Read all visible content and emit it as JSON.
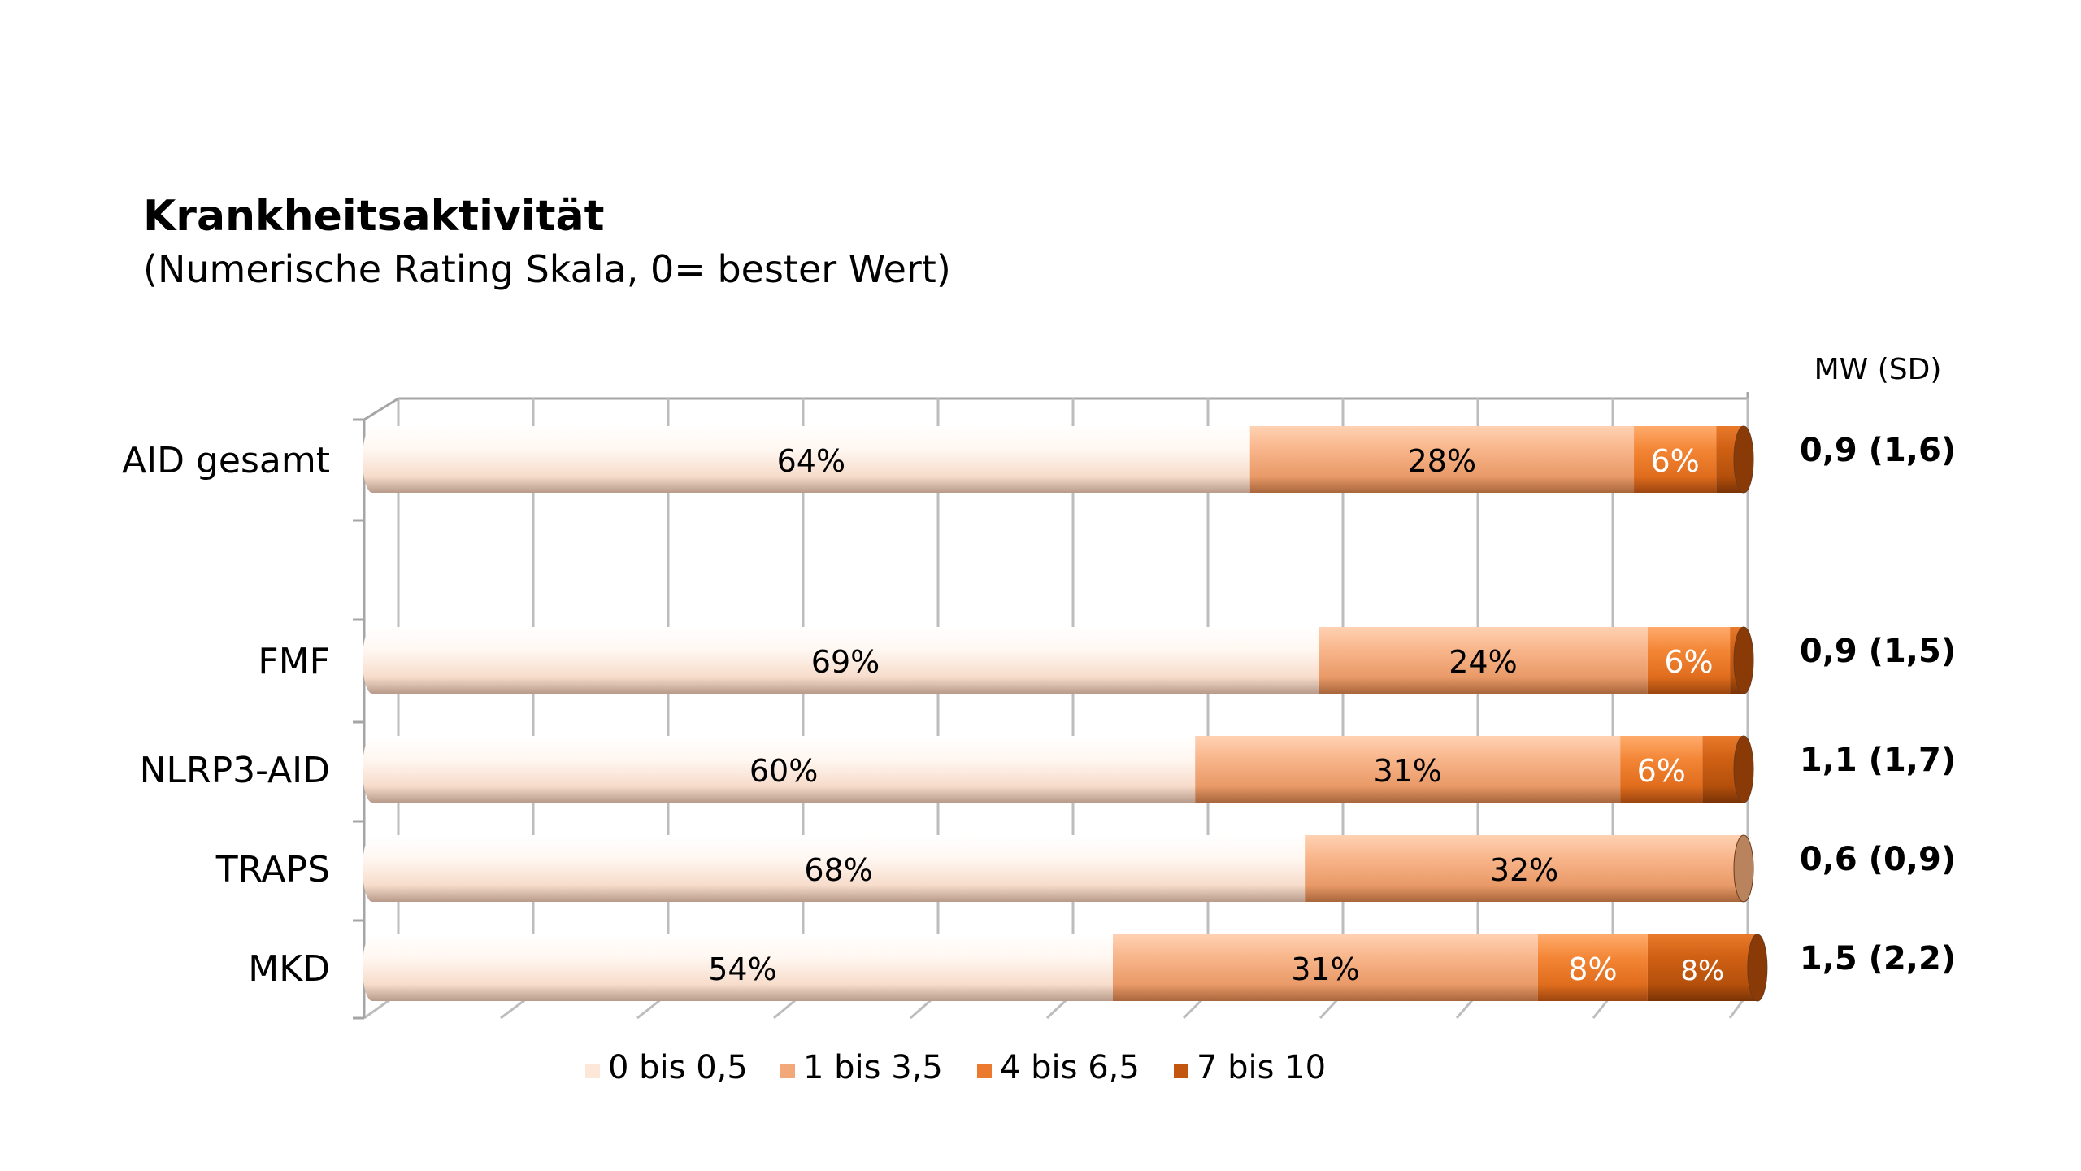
{
  "title": "Krankheitsaktivität",
  "subtitle": "(Numerische Rating Skala, 0= bester Wert)",
  "mw_header": "MW (SD)",
  "chart_data": {
    "type": "bar",
    "orientation": "horizontal",
    "stacked": true,
    "percent_stacked": true,
    "title": "Krankheitsaktivität",
    "subtitle": "(Numerische Rating Skala, 0= bester Wert)",
    "categories": [
      "AID gesamt",
      "FMF",
      "NLRP3-AID",
      "TRAPS",
      "MKD"
    ],
    "series": [
      {
        "name": "0 bis 0,5",
        "color": "#fde7d9",
        "values": [
          64,
          69,
          60,
          68,
          54
        ],
        "labels": [
          "64%",
          "69%",
          "60%",
          "68%",
          "54%"
        ]
      },
      {
        "name": "1 bis 3,5",
        "color": "#f2a878",
        "values": [
          28,
          24,
          31,
          32,
          31
        ],
        "labels": [
          "28%",
          "24%",
          "31%",
          "32%",
          "31%"
        ]
      },
      {
        "name": "4 bis 6,5",
        "color": "#ec7a2e",
        "values": [
          6,
          6,
          6,
          0,
          8
        ],
        "labels": [
          "6%",
          "6%",
          "6%",
          "",
          "8%"
        ]
      },
      {
        "name": "7 bis 10",
        "color": "#c2560f",
        "values": [
          2,
          1,
          3,
          0,
          8
        ],
        "labels": [
          "",
          "",
          "",
          "",
          "8%"
        ]
      }
    ],
    "mw_sd": [
      "0,9 (1,6)",
      "0,9 (1,5)",
      "1,1 (1,7)",
      "0,6 (0,9)",
      "1,5 (2,2)"
    ],
    "xlim": [
      0,
      100
    ],
    "grid": true,
    "legend": "bottom",
    "style": "3d-cylinder"
  }
}
